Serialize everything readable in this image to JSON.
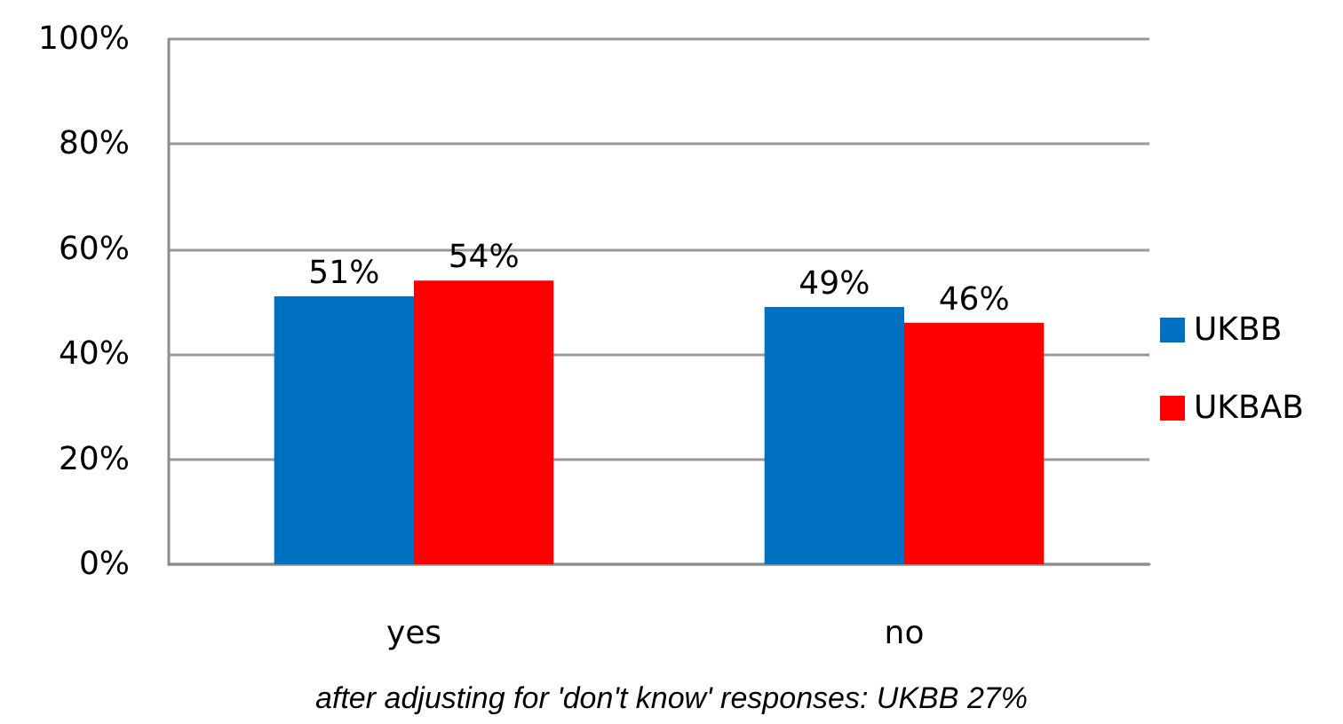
{
  "chart_data": {
    "type": "bar",
    "categories": [
      "yes",
      "no"
    ],
    "series": [
      {
        "name": "UKBB",
        "color": "#0070c0",
        "values": [
          51,
          49
        ],
        "value_labels": [
          "51%",
          "49%"
        ]
      },
      {
        "name": "UKBAB",
        "color": "#ff0000",
        "values": [
          54,
          46
        ],
        "value_labels": [
          "54%",
          "46%"
        ]
      }
    ],
    "ylim": [
      0,
      100
    ],
    "yticks": [
      {
        "value": 0,
        "label": "0%"
      },
      {
        "value": 20,
        "label": "20%"
      },
      {
        "value": 40,
        "label": "40%"
      },
      {
        "value": 60,
        "label": "60%"
      },
      {
        "value": 80,
        "label": "80%"
      },
      {
        "value": 100,
        "label": "100%"
      }
    ],
    "grid": "y",
    "legend": "right",
    "annotations": [
      "after adjusting for 'don't know' responses: UKBB 27%"
    ]
  }
}
